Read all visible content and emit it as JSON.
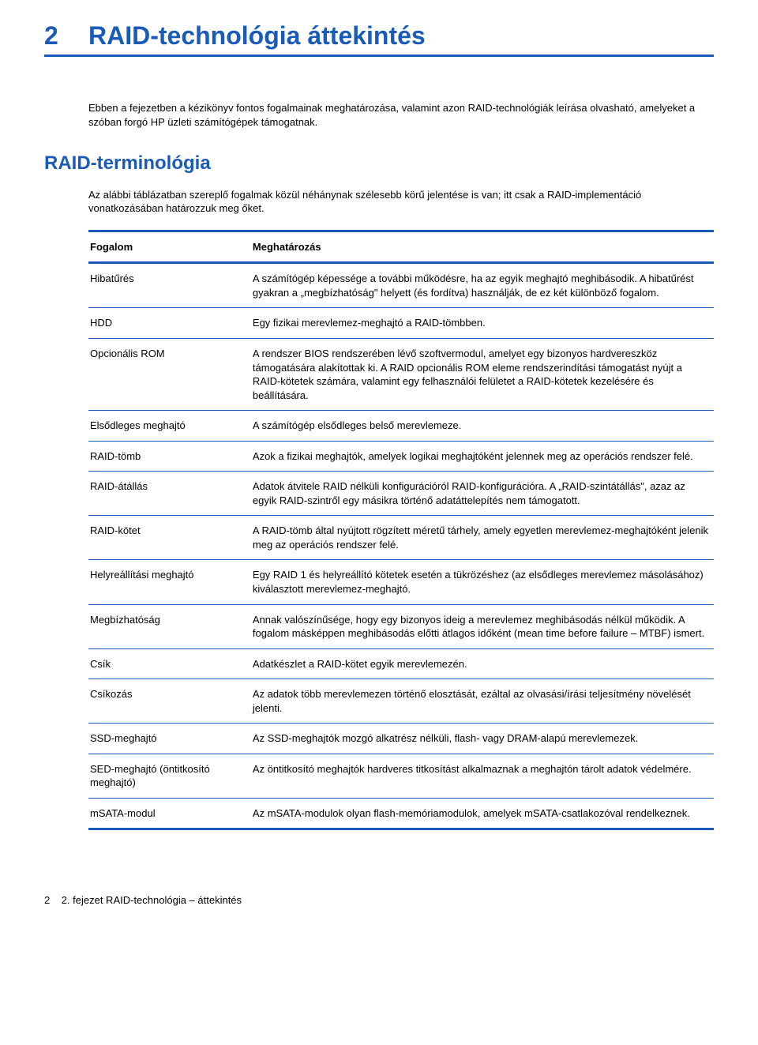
{
  "chapter": {
    "number": "2",
    "title": "RAID-technológia áttekintés",
    "intro": "Ebben a fejezetben a kézikönyv fontos fogalmainak meghatározása, valamint azon RAID-technológiák leírása olvasható, amelyeket a szóban forgó HP üzleti számítógépek támogatnak."
  },
  "section": {
    "title": "RAID-terminológia",
    "intro": "Az alábbi táblázatban szereplő fogalmak közül néhánynak szélesebb körű jelentése is van; itt csak a RAID-implementáció vonatkozásában határozzuk meg őket."
  },
  "table": {
    "header_term": "Fogalom",
    "header_def": "Meghatározás",
    "colors": {
      "rule": "#1a5bb8",
      "text": "#000000",
      "heading": "#1a5bb8"
    },
    "rows": [
      {
        "term": "Hibatűrés",
        "def": "A számítógép képessége a további működésre, ha az egyik meghajtó meghibásodik. A hibatűrést gyakran a „megbízhatóság\" helyett (és fordítva) használják, de ez két különböző fogalom."
      },
      {
        "term": "HDD",
        "def": "Egy fizikai merevlemez-meghajtó a RAID-tömbben."
      },
      {
        "term": "Opcionális ROM",
        "def": "A rendszer BIOS rendszerében lévő szoftvermodul, amelyet egy bizonyos hardvereszköz támogatására alakítottak ki. A RAID opcionális ROM eleme rendszerindítási támogatást nyújt a RAID-kötetek számára, valamint egy felhasználói felületet a RAID-kötetek kezelésére és beállítására."
      },
      {
        "term": "Elsődleges meghajtó",
        "def": "A számítógép elsődleges belső merevlemeze."
      },
      {
        "term": "RAID-tömb",
        "def": "Azok a fizikai meghajtók, amelyek logikai meghajtóként jelennek meg az operációs rendszer felé."
      },
      {
        "term": "RAID-átállás",
        "def": "Adatok átvitele RAID nélküli konfigurációról RAID-konfigurációra. A „RAID-szintátállás\", azaz az egyik RAID-szintről egy másikra történő adatáttelepítés nem támogatott."
      },
      {
        "term": "RAID-kötet",
        "def": "A RAID-tömb által nyújtott rögzített méretű tárhely, amely egyetlen merevlemez-meghajtóként jelenik meg az operációs rendszer felé."
      },
      {
        "term": "Helyreállítási meghajtó",
        "def": "Egy RAID 1 és helyreállító kötetek esetén a tükrözéshez (az elsődleges merevlemez másolásához) kiválasztott merevlemez-meghajtó."
      },
      {
        "term": "Megbízhatóság",
        "def": "Annak valószínűsége, hogy egy bizonyos ideig a merevlemez meghibásodás nélkül működik. A fogalom másképpen meghibásodás előtti átlagos időként (mean time before failure – MTBF) ismert."
      },
      {
        "term": "Csík",
        "def": "Adatkészlet a RAID-kötet egyik merevlemezén."
      },
      {
        "term": "Csíkozás",
        "def": "Az adatok több merevlemezen történő elosztását, ezáltal az olvasási/írási teljesítmény növelését jelenti."
      },
      {
        "term": "SSD-meghajtó",
        "def": "Az SSD-meghajtók mozgó alkatrész nélküli, flash- vagy DRAM-alapú merevlemezek."
      },
      {
        "term": "SED-meghajtó (öntitkosító meghajtó)",
        "def": "Az öntitkosító meghajtók hardveres titkosítást alkalmaznak a meghajtón tárolt adatok védelmére."
      },
      {
        "term": "mSATA-modul",
        "def": "Az mSATA-modulok olyan flash-memóriamodulok, amelyek mSATA-csatlakozóval rendelkeznek."
      }
    ]
  },
  "footer": {
    "page": "2",
    "label": "2. fejezet   RAID-technológia – áttekintés"
  }
}
